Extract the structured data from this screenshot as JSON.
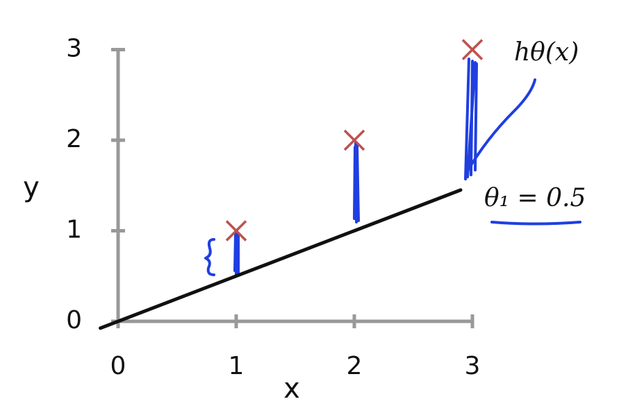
{
  "chart_data": {
    "type": "scatter",
    "x": [
      1,
      2,
      3
    ],
    "values": [
      1,
      2,
      3
    ],
    "color": "#c0504d",
    "fit_line": {
      "x": [
        -0.15,
        2.9
      ],
      "values": [
        -0.075,
        1.45
      ],
      "color": "#111111"
    },
    "xlim": [
      0,
      3
    ],
    "ylim": [
      0,
      3
    ],
    "xticks": [
      0,
      1,
      2,
      3
    ],
    "yticks": [
      0,
      1,
      2,
      3
    ],
    "xlabel": "x",
    "ylabel": "y",
    "annotations": [
      "hθ(x)",
      "θ₁ = 0.5"
    ]
  }
}
